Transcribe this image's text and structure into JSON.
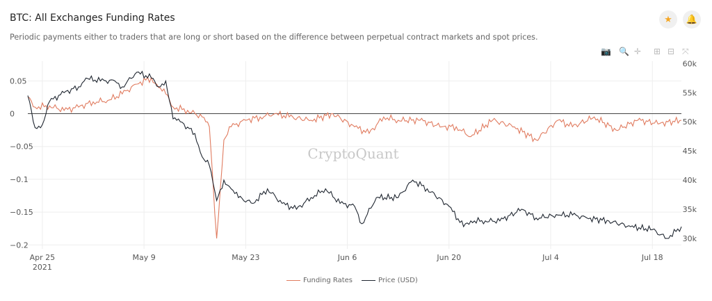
{
  "header": {
    "title": "BTC: All Exchanges Funding Rates",
    "subtitle": "Periodic payments either to traders that are long or short based on the difference between perpetual contract markets and spot prices.",
    "star_icon": "star-icon",
    "bell_icon": "bell-icon"
  },
  "toolbar": [
    "camera-icon",
    "zoom-icon",
    "pan-icon",
    "zoom-in-icon",
    "zoom-out-icon",
    "reset-axes-icon"
  ],
  "watermark": "CryptoQuant",
  "chart_data": {
    "type": "line",
    "x_ticks": [
      "Apr 25",
      "May 9",
      "May 23",
      "Jun 6",
      "Jun 20",
      "Jul 4",
      "Jul 18"
    ],
    "x_tick_dates": [
      "2021-04-25",
      "2021-05-09",
      "2021-05-23",
      "2021-06-06",
      "2021-06-20",
      "2021-07-04",
      "2021-07-18"
    ],
    "x_year_label": "2021",
    "y_left_ticks": [
      0.05,
      0,
      -0.05,
      -0.1,
      -0.15,
      -0.2
    ],
    "y_left_tick_labels": [
      "0.05",
      "0",
      "−0.05",
      "−0.1",
      "−0.15",
      "−0.2"
    ],
    "y_left_range": [
      -0.206,
      0.08
    ],
    "y_right_ticks": [
      "60k",
      "55k",
      "50k",
      "45k",
      "40k",
      "35k",
      "30k"
    ],
    "y_right_range": [
      28200,
      60400
    ],
    "x_range": [
      "2021-04-23",
      "2021-07-22"
    ],
    "grid": true,
    "legend_position": "bottom",
    "colors": {
      "funding": "#e07b5f",
      "price": "#1f2630"
    },
    "series": [
      {
        "name": "Funding Rates",
        "axis": "left",
        "dates": [
          "2021-04-23",
          "2021-04-24",
          "2021-04-26",
          "2021-04-28",
          "2021-04-30",
          "2021-05-02",
          "2021-05-04",
          "2021-05-06",
          "2021-05-08",
          "2021-05-10",
          "2021-05-11",
          "2021-05-12",
          "2021-05-13",
          "2021-05-15",
          "2021-05-17",
          "2021-05-18",
          "2021-05-19",
          "2021-05-20",
          "2021-05-21",
          "2021-05-23",
          "2021-05-25",
          "2021-05-27",
          "2021-05-29",
          "2021-06-01",
          "2021-06-04",
          "2021-06-07",
          "2021-06-09",
          "2021-06-11",
          "2021-06-13",
          "2021-06-16",
          "2021-06-19",
          "2021-06-21",
          "2021-06-23",
          "2021-06-26",
          "2021-06-29",
          "2021-07-02",
          "2021-07-05",
          "2021-07-07",
          "2021-07-10",
          "2021-07-13",
          "2021-07-16",
          "2021-07-19",
          "2021-07-22"
        ],
        "values": [
          0.025,
          0.01,
          0.012,
          0.005,
          0.01,
          0.018,
          0.02,
          0.03,
          0.045,
          0.055,
          0.04,
          0.03,
          0.01,
          0.005,
          -0.005,
          -0.02,
          -0.19,
          -0.04,
          -0.02,
          -0.01,
          -0.005,
          0.0,
          -0.005,
          -0.01,
          0.0,
          -0.02,
          -0.03,
          -0.005,
          -0.01,
          -0.01,
          -0.02,
          -0.02,
          -0.035,
          -0.01,
          -0.02,
          -0.04,
          -0.01,
          -0.02,
          -0.005,
          -0.025,
          -0.01,
          -0.015,
          -0.01
        ]
      },
      {
        "name": "Price (USD)",
        "axis": "right",
        "dates": [
          "2021-04-23",
          "2021-04-24",
          "2021-04-25",
          "2021-04-26",
          "2021-04-28",
          "2021-04-30",
          "2021-05-01",
          "2021-05-03",
          "2021-05-05",
          "2021-05-06",
          "2021-05-08",
          "2021-05-10",
          "2021-05-11",
          "2021-05-12",
          "2021-05-13",
          "2021-05-14",
          "2021-05-16",
          "2021-05-17",
          "2021-05-18",
          "2021-05-19",
          "2021-05-20",
          "2021-05-21",
          "2021-05-22",
          "2021-05-24",
          "2021-05-26",
          "2021-05-28",
          "2021-05-30",
          "2021-06-01",
          "2021-06-03",
          "2021-06-05",
          "2021-06-07",
          "2021-06-08",
          "2021-06-10",
          "2021-06-13",
          "2021-06-15",
          "2021-06-17",
          "2021-06-20",
          "2021-06-22",
          "2021-06-23",
          "2021-06-25",
          "2021-06-27",
          "2021-06-30",
          "2021-07-02",
          "2021-07-05",
          "2021-07-07",
          "2021-07-09",
          "2021-07-12",
          "2021-07-15",
          "2021-07-18",
          "2021-07-20",
          "2021-07-22"
        ],
        "values": [
          54500,
          49000,
          49500,
          53500,
          55000,
          56000,
          57500,
          57000,
          57000,
          56000,
          58500,
          57500,
          56000,
          57000,
          50500,
          50000,
          48000,
          44000,
          42500,
          36500,
          40000,
          38500,
          37000,
          36000,
          38500,
          36000,
          35000,
          37000,
          38500,
          36000,
          35500,
          32500,
          37000,
          37000,
          40000,
          38500,
          35500,
          32000,
          33000,
          33000,
          33000,
          35000,
          33500,
          34000,
          34000,
          33500,
          33000,
          32000,
          31500,
          30000,
          32000
        ]
      }
    ]
  },
  "legend": {
    "funding_label": "Funding Rates",
    "price_label": "Price (USD)"
  }
}
